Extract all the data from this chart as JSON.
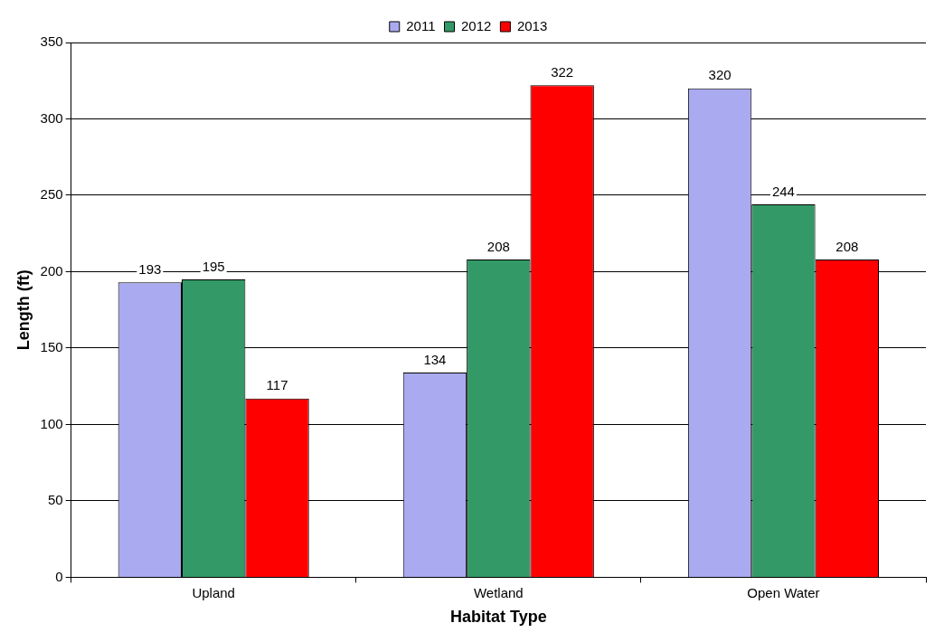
{
  "chart_data": {
    "type": "bar",
    "xlabel": "Habitat Type",
    "ylabel": "Length (ft)",
    "categories": [
      "Upland",
      "Wetland",
      "Open Water"
    ],
    "series": [
      {
        "name": "2011",
        "color": "#aaaaf0",
        "values": [
          193,
          134,
          320
        ]
      },
      {
        "name": "2012",
        "color": "#339966",
        "values": [
          195,
          208,
          244
        ]
      },
      {
        "name": "2013",
        "color": "#ff0000",
        "values": [
          117,
          322,
          208
        ]
      }
    ],
    "ylim": [
      0,
      350
    ],
    "yticks": [
      0,
      50,
      100,
      150,
      200,
      250,
      300,
      350
    ],
    "grid": "y",
    "legend": "top",
    "data_labels": true
  }
}
